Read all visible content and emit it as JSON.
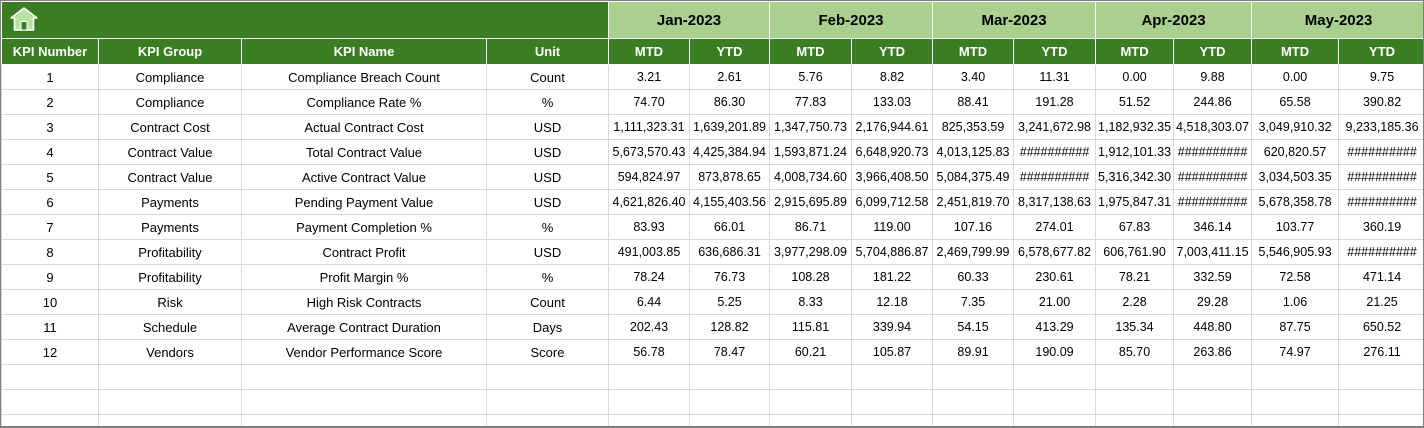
{
  "colors": {
    "header_dark_green": "#3A7D22",
    "month_light_green": "#A9D08E",
    "grid_border": "#D9D9D9",
    "outer_border": "#7F7F7F",
    "cell_background": "#FFFFFF",
    "header_text": "#FFFFFF",
    "data_text": "#000000"
  },
  "header": {
    "home_icon": "home"
  },
  "table": {
    "columns": [
      "KPI Number",
      "KPI Group",
      "KPI Name",
      "Unit"
    ],
    "months": [
      "Jan-2023",
      "Feb-2023",
      "Mar-2023",
      "Apr-2023",
      "May-2023"
    ],
    "sub_columns": [
      "MTD",
      "YTD"
    ],
    "empty_row_count": 3,
    "rows": [
      {
        "kpi_number": "1",
        "kpi_group": "Compliance",
        "kpi_name": "Compliance Breach Count",
        "unit": "Count",
        "values": [
          "3.21",
          "2.61",
          "5.76",
          "8.82",
          "3.40",
          "11.31",
          "0.00",
          "9.88",
          "0.00",
          "9.75"
        ]
      },
      {
        "kpi_number": "2",
        "kpi_group": "Compliance",
        "kpi_name": "Compliance Rate %",
        "unit": "%",
        "values": [
          "74.70",
          "86.30",
          "77.83",
          "133.03",
          "88.41",
          "191.28",
          "51.52",
          "244.86",
          "65.58",
          "390.82"
        ]
      },
      {
        "kpi_number": "3",
        "kpi_group": "Contract Cost",
        "kpi_name": "Actual Contract Cost",
        "unit": "USD",
        "values": [
          "1,111,323.31",
          "1,639,201.89",
          "1,347,750.73",
          "2,176,944.61",
          "825,353.59",
          "3,241,672.98",
          "1,182,932.35",
          "4,518,303.07",
          "3,049,910.32",
          "9,233,185.36"
        ]
      },
      {
        "kpi_number": "4",
        "kpi_group": "Contract Value",
        "kpi_name": "Total Contract Value",
        "unit": "USD",
        "values": [
          "5,673,570.43",
          "4,425,384.94",
          "1,593,871.24",
          "6,648,920.73",
          "4,013,125.83",
          "##########",
          "1,912,101.33",
          "##########",
          "620,820.57",
          "##########"
        ]
      },
      {
        "kpi_number": "5",
        "kpi_group": "Contract Value",
        "kpi_name": "Active Contract Value",
        "unit": "USD",
        "values": [
          "594,824.97",
          "873,878.65",
          "4,008,734.60",
          "3,966,408.50",
          "5,084,375.49",
          "##########",
          "5,316,342.30",
          "##########",
          "3,034,503.35",
          "##########"
        ]
      },
      {
        "kpi_number": "6",
        "kpi_group": "Payments",
        "kpi_name": "Pending Payment Value",
        "unit": "USD",
        "values": [
          "4,621,826.40",
          "4,155,403.56",
          "2,915,695.89",
          "6,099,712.58",
          "2,451,819.70",
          "8,317,138.63",
          "1,975,847.31",
          "##########",
          "5,678,358.78",
          "##########"
        ]
      },
      {
        "kpi_number": "7",
        "kpi_group": "Payments",
        "kpi_name": "Payment Completion %",
        "unit": "%",
        "values": [
          "83.93",
          "66.01",
          "86.71",
          "119.00",
          "107.16",
          "274.01",
          "67.83",
          "346.14",
          "103.77",
          "360.19"
        ]
      },
      {
        "kpi_number": "8",
        "kpi_group": "Profitability",
        "kpi_name": "Contract Profit",
        "unit": "USD",
        "values": [
          "491,003.85",
          "636,686.31",
          "3,977,298.09",
          "5,704,886.87",
          "2,469,799.99",
          "6,578,677.82",
          "606,761.90",
          "7,003,411.15",
          "5,546,905.93",
          "##########"
        ]
      },
      {
        "kpi_number": "9",
        "kpi_group": "Profitability",
        "kpi_name": "Profit Margin %",
        "unit": "%",
        "values": [
          "78.24",
          "76.73",
          "108.28",
          "181.22",
          "60.33",
          "230.61",
          "78.21",
          "332.59",
          "72.58",
          "471.14"
        ]
      },
      {
        "kpi_number": "10",
        "kpi_group": "Risk",
        "kpi_name": "High Risk Contracts",
        "unit": "Count",
        "values": [
          "6.44",
          "5.25",
          "8.33",
          "12.18",
          "7.35",
          "21.00",
          "2.28",
          "29.28",
          "1.06",
          "21.25"
        ]
      },
      {
        "kpi_number": "11",
        "kpi_group": "Schedule",
        "kpi_name": "Average Contract Duration",
        "unit": "Days",
        "values": [
          "202.43",
          "128.82",
          "115.81",
          "339.94",
          "54.15",
          "413.29",
          "135.34",
          "448.80",
          "87.75",
          "650.52"
        ]
      },
      {
        "kpi_number": "12",
        "kpi_group": "Vendors",
        "kpi_name": "Vendor Performance Score",
        "unit": "Score",
        "values": [
          "56.78",
          "78.47",
          "60.21",
          "105.87",
          "89.91",
          "190.09",
          "85.70",
          "263.86",
          "74.97",
          "276.11"
        ]
      }
    ]
  }
}
